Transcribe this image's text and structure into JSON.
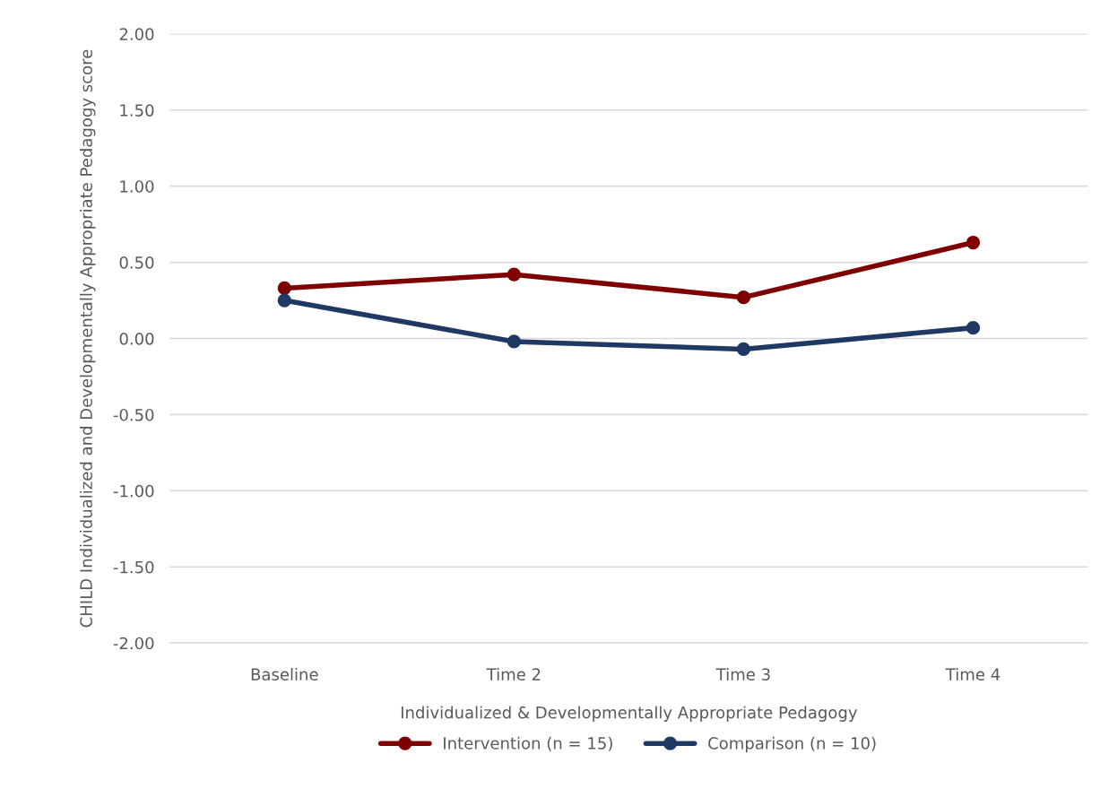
{
  "chart_data": {
    "type": "line",
    "xlabel": "Individualized & Developmentally Appropriate Pedagogy",
    "ylabel": "CHILD Individualized and Developmentally Appropriate Pedagogy score",
    "categories": [
      "Baseline",
      "Time 2",
      "Time 3",
      "Time 4"
    ],
    "series": [
      {
        "name": "Intervention (n = 15)",
        "color": "#7f0000",
        "values": [
          0.33,
          0.42,
          0.27,
          0.63
        ]
      },
      {
        "name": "Comparison (n = 10)",
        "color": "#203864",
        "values": [
          0.25,
          -0.02,
          -0.07,
          0.07
        ]
      }
    ],
    "ylim": [
      -2,
      2
    ],
    "yticks": [
      {
        "value": -2,
        "label": "-2.00"
      },
      {
        "value": -1.5,
        "label": "-1.50"
      },
      {
        "value": -1,
        "label": "-1.00"
      },
      {
        "value": -0.5,
        "label": "-0.50"
      },
      {
        "value": 0,
        "label": "0.00"
      },
      {
        "value": 0.5,
        "label": "0.50"
      },
      {
        "value": 1,
        "label": "1.00"
      },
      {
        "value": 1.5,
        "label": "1.50"
      },
      {
        "value": 2,
        "label": "2.00"
      }
    ],
    "grid": "y",
    "legend": "bottom",
    "marker": "circle",
    "line_style": "solid"
  }
}
